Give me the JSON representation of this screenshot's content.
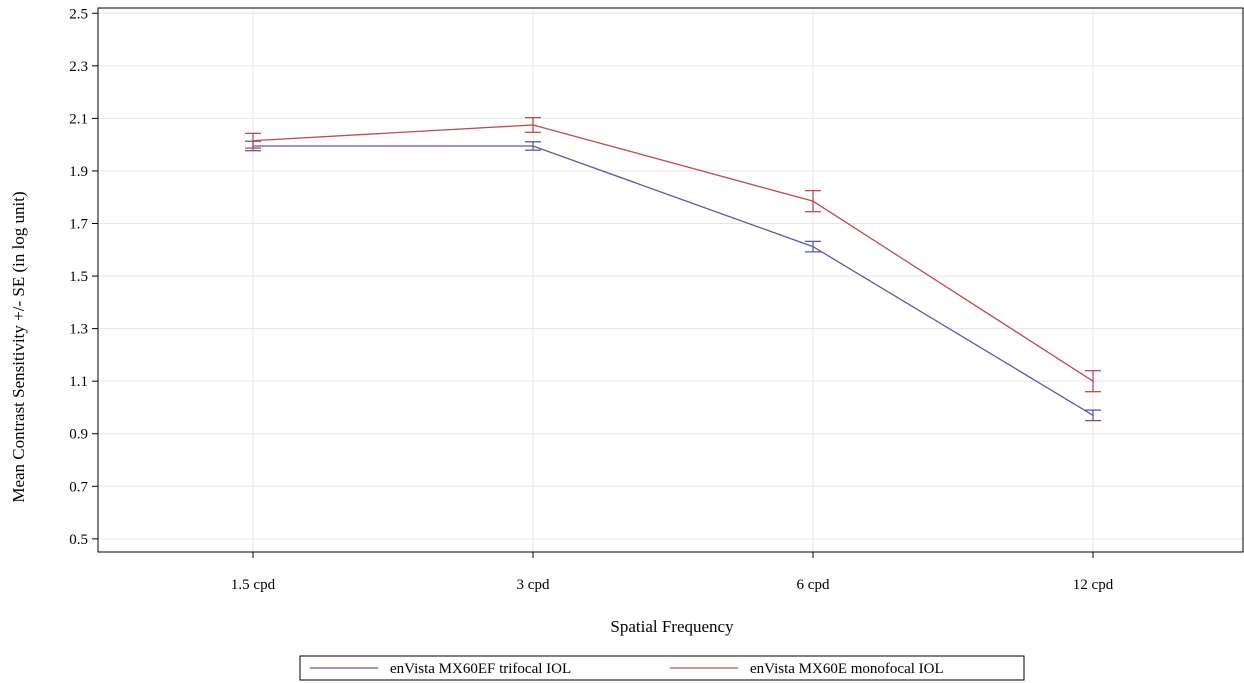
{
  "chart_data": {
    "type": "line",
    "title": "",
    "xlabel": "Spatial Frequency",
    "ylabel": "Mean Contrast Sensitivity +/- SE (in log unit)",
    "categories": [
      "1.5 cpd",
      "3 cpd",
      "6 cpd",
      "12 cpd"
    ],
    "ylim": [
      0.45,
      2.52
    ],
    "yticks": [
      "0.5",
      "0.7",
      "0.9",
      "1.1",
      "1.3",
      "1.5",
      "1.7",
      "1.9",
      "2.1",
      "2.3",
      "2.5"
    ],
    "grid": true,
    "legend_position": "bottom",
    "series": [
      {
        "name": "enVista MX60EF trifocal IOL",
        "color": "#5a5aaa",
        "values": [
          1.995,
          1.995,
          1.612,
          0.97
        ],
        "se": [
          0.018,
          0.016,
          0.02,
          0.02
        ]
      },
      {
        "name": "enVista MX60E monofocal IOL",
        "color": "#c04a52",
        "values": [
          2.015,
          2.075,
          1.785,
          1.1
        ],
        "se": [
          0.028,
          0.028,
          0.04,
          0.04
        ]
      }
    ]
  }
}
